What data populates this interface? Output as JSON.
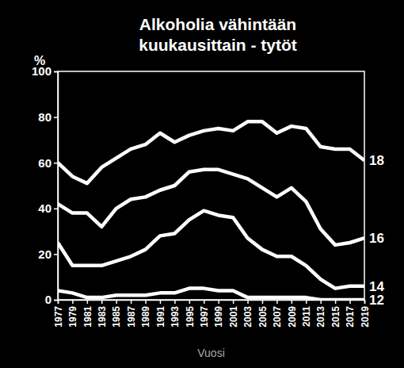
{
  "chart_data": {
    "type": "line",
    "title": "Alkoholia vähintään kuukausittain  - tytöt",
    "x_label": "Vuosi",
    "y_label": "%",
    "x": [
      1977,
      1979,
      1981,
      1983,
      1985,
      1987,
      1989,
      1991,
      1993,
      1995,
      1997,
      1999,
      2001,
      2003,
      2005,
      2007,
      2009,
      2011,
      2013,
      2015,
      2017,
      2019
    ],
    "xlim": [
      1977,
      2019
    ],
    "xticks": [
      1977,
      1979,
      1981,
      1983,
      1985,
      1987,
      1989,
      1991,
      1993,
      1995,
      1997,
      1999,
      2001,
      2003,
      2005,
      2007,
      2009,
      2011,
      2013,
      2015,
      2017,
      2019
    ],
    "ylim": [
      0,
      100
    ],
    "yticks": [
      0,
      20,
      40,
      60,
      80,
      100
    ],
    "grid": false,
    "color": "#ffffff",
    "series": [
      {
        "name": "18",
        "values": [
          60,
          54,
          51,
          58,
          62,
          66,
          68,
          73,
          69,
          72,
          74,
          75,
          74,
          78,
          78,
          73,
          76,
          75,
          67,
          66,
          66,
          61
        ]
      },
      {
        "name": "16",
        "values": [
          42,
          38,
          38,
          32,
          40,
          44,
          45,
          48,
          50,
          56,
          57,
          57,
          55,
          53,
          49,
          45,
          49,
          43,
          31,
          24,
          25,
          27
        ]
      },
      {
        "name": "14",
        "values": [
          25,
          15,
          15,
          15,
          17,
          19,
          22,
          28,
          29,
          35,
          39,
          37,
          36,
          27,
          22,
          19,
          19,
          15,
          9,
          5,
          6,
          6
        ]
      },
      {
        "name": "12",
        "values": [
          4,
          3,
          1,
          1,
          2,
          2,
          2,
          3,
          3,
          5,
          5,
          4,
          4,
          1,
          1,
          1,
          1,
          1,
          0,
          0,
          0,
          0
        ]
      }
    ]
  }
}
